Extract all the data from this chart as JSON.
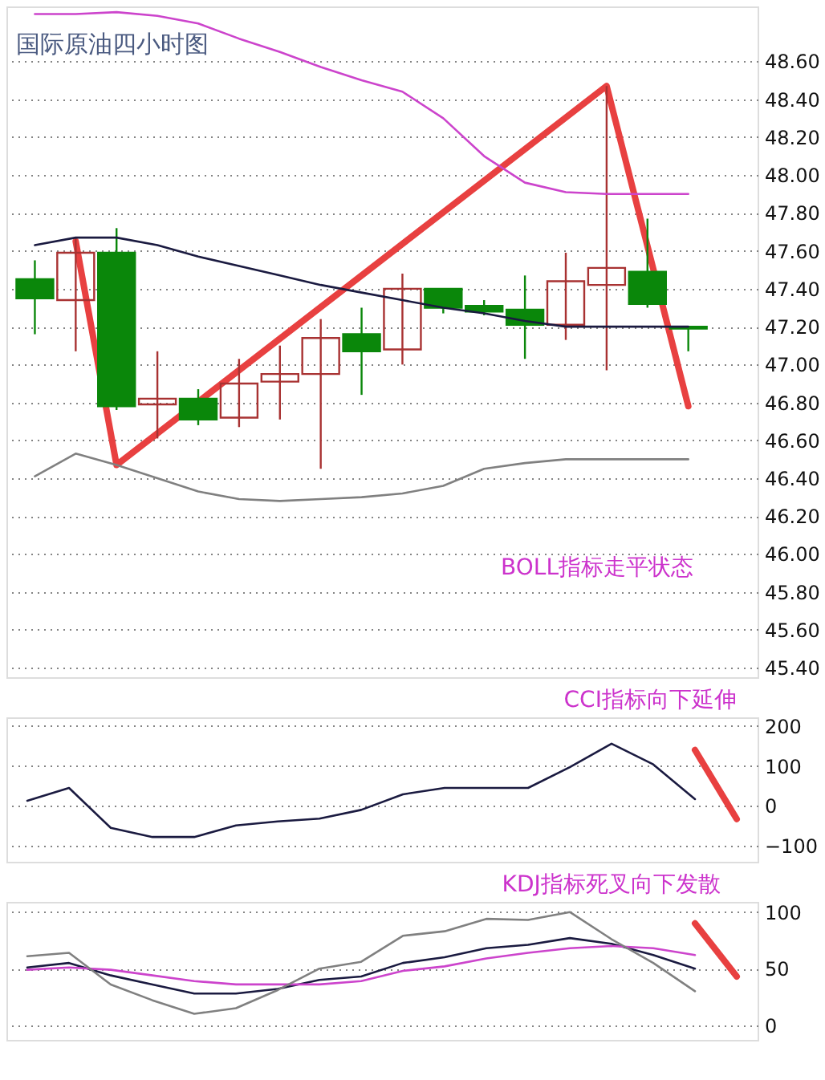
{
  "chart_data": [
    {
      "type": "candlestick",
      "title": "国际原油四小时图",
      "categories": [
        null,
        null,
        null,
        null,
        null,
        null,
        null,
        null,
        null,
        null,
        null,
        null,
        null,
        null,
        null,
        null,
        null
      ],
      "ohlc": [
        [
          47.45,
          47.55,
          47.16,
          47.35
        ],
        [
          47.34,
          47.67,
          47.07,
          47.59
        ],
        [
          47.59,
          47.72,
          46.76,
          46.78
        ],
        [
          46.79,
          47.07,
          46.61,
          46.82
        ],
        [
          46.82,
          46.87,
          46.68,
          46.71
        ],
        [
          46.72,
          47.03,
          46.67,
          46.9
        ],
        [
          46.91,
          47.1,
          46.71,
          46.95
        ],
        [
          46.95,
          47.24,
          46.45,
          47.14
        ],
        [
          47.16,
          47.3,
          46.84,
          47.07
        ],
        [
          47.08,
          47.48,
          47.0,
          47.4
        ],
        [
          47.4,
          47.4,
          47.27,
          47.3
        ],
        [
          47.31,
          47.34,
          47.26,
          47.28
        ],
        [
          47.29,
          47.47,
          47.03,
          47.21
        ],
        [
          47.21,
          47.59,
          47.13,
          47.44
        ],
        [
          47.42,
          48.47,
          46.97,
          47.51
        ],
        [
          47.49,
          47.77,
          47.3,
          47.32
        ],
        [
          47.2,
          47.2,
          47.07,
          47.19
        ]
      ],
      "colors": [
        "#0a870a",
        "#a83232",
        "#0a870a",
        "#a83232",
        "#0a870a",
        "#a83232",
        "#a83232",
        "#a83232",
        "#0a870a",
        "#a83232",
        "#0a870a",
        "#0a870a",
        "#0a870a",
        "#a83232",
        "#a83232",
        "#0a870a",
        "#0a870a"
      ],
      "series": [
        {
          "type": "line",
          "color": "#cc44cc",
          "values": [
            48.85,
            48.85,
            48.86,
            48.84,
            48.8,
            48.72,
            48.65,
            48.57,
            48.5,
            48.44,
            48.3,
            48.1,
            47.96,
            47.91,
            47.9,
            47.9,
            47.9
          ]
        },
        {
          "type": "line",
          "color": "#1a1a40",
          "values": [
            47.63,
            47.67,
            47.67,
            47.63,
            47.57,
            47.52,
            47.47,
            47.42,
            47.38,
            47.34,
            47.3,
            47.27,
            47.23,
            47.2,
            47.2,
            47.2,
            47.2
          ]
        },
        {
          "type": "line",
          "color": "#808080",
          "values": [
            46.41,
            46.53,
            46.47,
            46.4,
            46.33,
            46.29,
            46.28,
            46.29,
            46.3,
            46.32,
            46.36,
            46.45,
            46.48,
            46.5,
            46.5,
            46.5,
            46.5
          ]
        },
        {
          "type": "line",
          "color": "#e84040",
          "values": [
            null,
            47.65,
            46.47,
            null,
            null,
            null,
            null,
            null,
            null,
            null,
            null,
            null,
            null,
            null,
            48.47,
            null,
            46.78
          ]
        }
      ],
      "ylim": [
        45.35,
        48.89
      ],
      "yticks": [
        {
          "value": 45.4,
          "label": "45.40"
        },
        {
          "value": 45.6,
          "label": "45.60"
        },
        {
          "value": 45.8,
          "label": "45.80"
        },
        {
          "value": 46.0,
          "label": "46.00"
        },
        {
          "value": 46.2,
          "label": "46.20"
        },
        {
          "value": 46.4,
          "label": "46.40"
        },
        {
          "value": 46.6,
          "label": "46.60"
        },
        {
          "value": 46.8,
          "label": "46.80"
        },
        {
          "value": 47.0,
          "label": "47.00"
        },
        {
          "value": 47.2,
          "label": "47.20"
        },
        {
          "value": 47.4,
          "label": "47.40"
        },
        {
          "value": 47.6,
          "label": "47.60"
        },
        {
          "value": 47.8,
          "label": "47.80"
        },
        {
          "value": 48.0,
          "label": "48.00"
        },
        {
          "value": 48.2,
          "label": "48.20"
        },
        {
          "value": 48.4,
          "label": "48.40"
        },
        {
          "value": 48.6,
          "label": "48.60"
        }
      ],
      "grid": "y",
      "tick_labels": "y",
      "annotations": [
        "BOLL指标走平状态"
      ]
    },
    {
      "type": "line",
      "title": "CCI指标向下延伸",
      "categories": [
        null,
        null,
        null,
        null,
        null,
        null,
        null,
        null,
        null,
        null,
        null,
        null,
        null,
        null,
        null,
        null,
        null,
        null
      ],
      "series": [
        {
          "color": "#1a1a40",
          "values": [
            13,
            45,
            -55,
            -78,
            -78,
            -49,
            -39,
            -32,
            -10,
            29,
            45,
            45,
            45,
            97,
            156,
            104,
            17,
            null
          ]
        },
        {
          "color": "#e84040",
          "values": [
            null,
            null,
            null,
            null,
            null,
            null,
            null,
            null,
            null,
            null,
            null,
            null,
            null,
            null,
            null,
            null,
            140,
            -33
          ]
        }
      ],
      "ylim": [
        -140,
        222
      ],
      "yticks": [
        -100,
        0,
        100,
        200
      ],
      "grid": "y",
      "tick_labels": "y"
    },
    {
      "type": "line",
      "title": "KDJ指标死叉向下发散",
      "categories": [
        null,
        null,
        null,
        null,
        null,
        null,
        null,
        null,
        null,
        null,
        null,
        null,
        null,
        null,
        null,
        null,
        null,
        null
      ],
      "series": [
        {
          "color": "#1a1a40",
          "values": [
            51,
            55,
            44,
            36,
            28,
            28,
            32,
            40,
            43,
            55,
            60,
            68,
            71,
            77,
            72,
            62,
            50,
            null
          ]
        },
        {
          "color": "#cc44cc",
          "values": [
            49,
            51,
            49,
            44,
            39,
            36,
            36,
            36,
            39,
            48,
            52,
            59,
            64,
            68,
            70,
            68,
            62,
            null
          ]
        },
        {
          "color": "#808080",
          "values": [
            61,
            64,
            36,
            22,
            10,
            15,
            31,
            50,
            56,
            79,
            83,
            94,
            93,
            100,
            76,
            55,
            30,
            null
          ]
        },
        {
          "color": "#e84040",
          "values": [
            null,
            null,
            null,
            null,
            null,
            null,
            null,
            null,
            null,
            null,
            null,
            null,
            null,
            null,
            null,
            null,
            90,
            43
          ]
        }
      ],
      "ylim": [
        -13,
        109
      ],
      "yticks": [
        0,
        50,
        100
      ],
      "grid": "y",
      "tick_labels": "y"
    }
  ]
}
